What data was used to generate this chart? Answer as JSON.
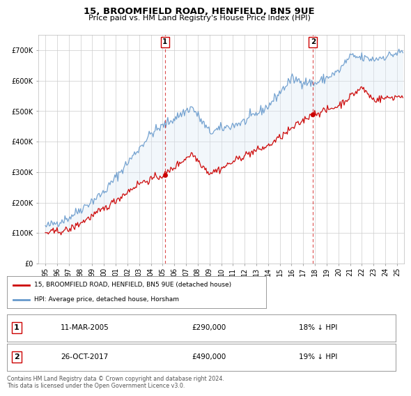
{
  "title": "15, BROOMFIELD ROAD, HENFIELD, BN5 9UE",
  "subtitle": "Price paid vs. HM Land Registry's House Price Index (HPI)",
  "legend_label_red": "15, BROOMFIELD ROAD, HENFIELD, BN5 9UE (detached house)",
  "legend_label_blue": "HPI: Average price, detached house, Horsham",
  "annotation1_date": "11-MAR-2005",
  "annotation1_price": "£290,000",
  "annotation1_hpi": "18% ↓ HPI",
  "annotation1_year": 2005.2,
  "annotation1_value": 290000,
  "annotation2_date": "26-OCT-2017",
  "annotation2_price": "£490,000",
  "annotation2_hpi": "19% ↓ HPI",
  "annotation2_year": 2017.83,
  "annotation2_value": 490000,
  "footer": "Contains HM Land Registry data © Crown copyright and database right 2024.\nThis data is licensed under the Open Government Licence v3.0.",
  "ylim": [
    0,
    750000
  ],
  "yticks": [
    0,
    100000,
    200000,
    300000,
    400000,
    500000,
    600000,
    700000
  ],
  "ytick_labels": [
    "£0",
    "£100K",
    "£200K",
    "£300K",
    "£400K",
    "£500K",
    "£600K",
    "£700K"
  ],
  "color_red": "#cc0000",
  "color_blue": "#6699cc",
  "color_fill": "#dce9f5",
  "color_annotation_box": "#cc0000",
  "background_chart": "#ffffff",
  "background_fig": "#ffffff",
  "grid_color": "#cccccc"
}
